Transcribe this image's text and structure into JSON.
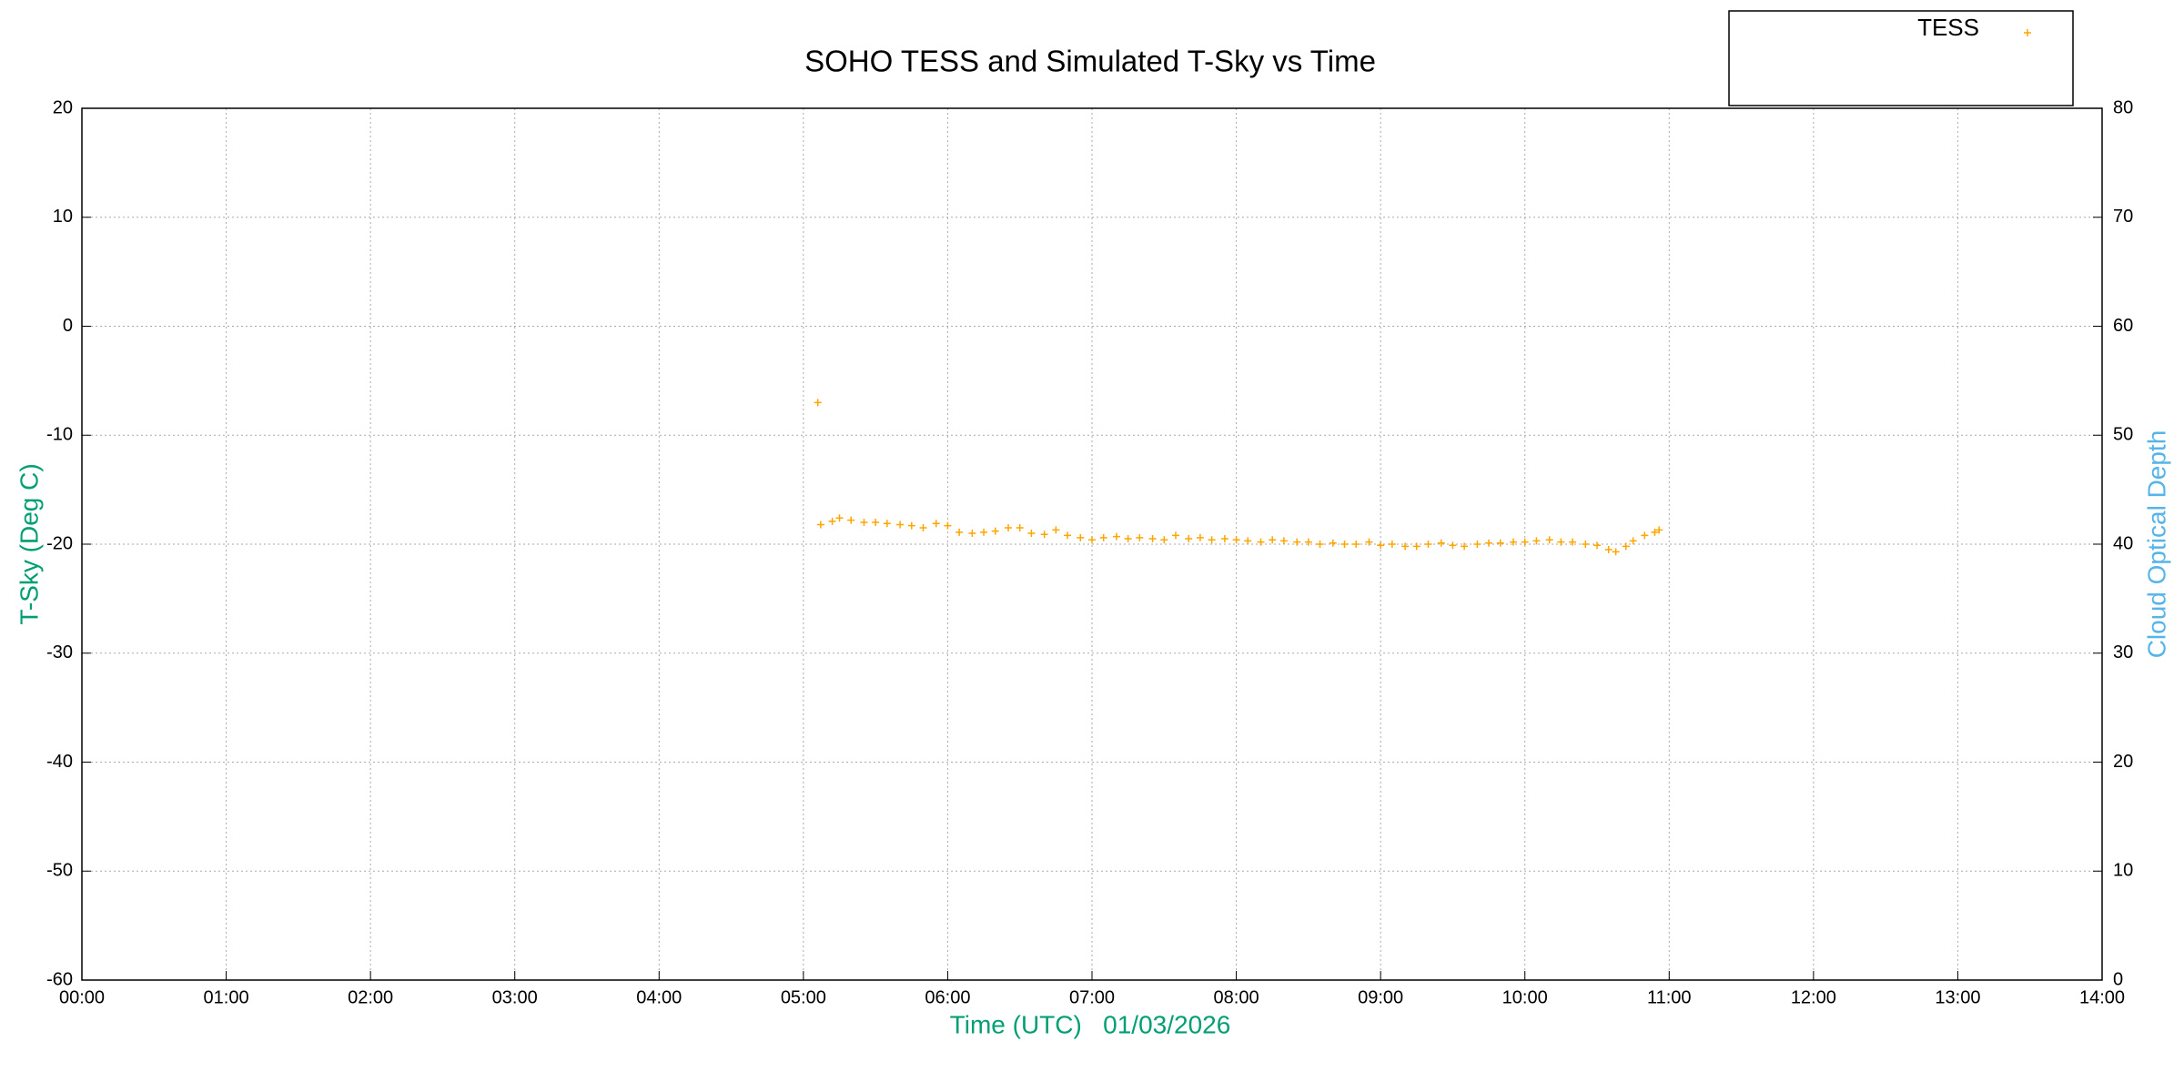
{
  "chart_data": {
    "type": "scatter",
    "title": "SOHO TESS and Simulated T-Sky vs Time",
    "xlabel": "Time (UTC)   01/03/2026",
    "ylabel": "T-Sky (Deg C)",
    "y2label": "Cloud Optical Depth",
    "xlim": [
      0,
      14
    ],
    "xticks": [
      {
        "value": 0,
        "label": "00:00"
      },
      {
        "value": 1,
        "label": "01:00"
      },
      {
        "value": 2,
        "label": "02:00"
      },
      {
        "value": 3,
        "label": "03:00"
      },
      {
        "value": 4,
        "label": "04:00"
      },
      {
        "value": 5,
        "label": "05:00"
      },
      {
        "value": 6,
        "label": "06:00"
      },
      {
        "value": 7,
        "label": "07:00"
      },
      {
        "value": 8,
        "label": "08:00"
      },
      {
        "value": 9,
        "label": "09:00"
      },
      {
        "value": 10,
        "label": "10:00"
      },
      {
        "value": 11,
        "label": "11:00"
      },
      {
        "value": 12,
        "label": "12:00"
      },
      {
        "value": 13,
        "label": "13:00"
      },
      {
        "value": 14,
        "label": "14:00"
      }
    ],
    "ylim": [
      -60,
      20
    ],
    "yticks": [
      -60,
      -50,
      -40,
      -30,
      -20,
      -10,
      0,
      10,
      20
    ],
    "y2lim": [
      0,
      80
    ],
    "y2ticks": [
      0,
      10,
      20,
      30,
      40,
      50,
      60,
      70,
      80
    ],
    "grid": true,
    "legend": "top-right",
    "series": [
      {
        "name": "TESS",
        "color": "#ffa500",
        "x": [
          5.1,
          5.12,
          5.2,
          5.25,
          5.33,
          5.42,
          5.5,
          5.58,
          5.67,
          5.75,
          5.83,
          5.92,
          6.0,
          6.08,
          6.17,
          6.25,
          6.33,
          6.42,
          6.5,
          6.58,
          6.67,
          6.75,
          6.83,
          6.92,
          7.0,
          7.08,
          7.17,
          7.25,
          7.33,
          7.42,
          7.5,
          7.58,
          7.67,
          7.75,
          7.83,
          7.92,
          8.0,
          8.08,
          8.17,
          8.25,
          8.33,
          8.42,
          8.5,
          8.58,
          8.67,
          8.75,
          8.83,
          8.92,
          9.0,
          9.08,
          9.17,
          9.25,
          9.33,
          9.42,
          9.5,
          9.58,
          9.67,
          9.75,
          9.83,
          9.92,
          10.0,
          10.08,
          10.17,
          10.25,
          10.33,
          10.42,
          10.5,
          10.58,
          10.63,
          10.7,
          10.75,
          10.83,
          10.9,
          10.93
        ],
        "values": [
          -7,
          -18.2,
          -17.9,
          -17.6,
          -17.8,
          -18.0,
          -18.0,
          -18.1,
          -18.2,
          -18.3,
          -18.5,
          -18.1,
          -18.3,
          -18.9,
          -19.0,
          -18.9,
          -18.8,
          -18.5,
          -18.5,
          -19.0,
          -19.1,
          -18.7,
          -19.2,
          -19.4,
          -19.6,
          -19.4,
          -19.3,
          -19.5,
          -19.4,
          -19.5,
          -19.6,
          -19.2,
          -19.5,
          -19.4,
          -19.6,
          -19.5,
          -19.6,
          -19.7,
          -19.8,
          -19.6,
          -19.7,
          -19.8,
          -19.8,
          -20.0,
          -19.9,
          -20.0,
          -20.0,
          -19.8,
          -20.1,
          -20.0,
          -20.2,
          -20.2,
          -20.0,
          -19.9,
          -20.1,
          -20.2,
          -20.0,
          -19.9,
          -19.9,
          -19.8,
          -19.8,
          -19.7,
          -19.6,
          -19.8,
          -19.8,
          -20.0,
          -20.1,
          -20.5,
          -20.7,
          -20.2,
          -19.7,
          -19.2,
          -18.9,
          -18.7
        ]
      }
    ]
  }
}
